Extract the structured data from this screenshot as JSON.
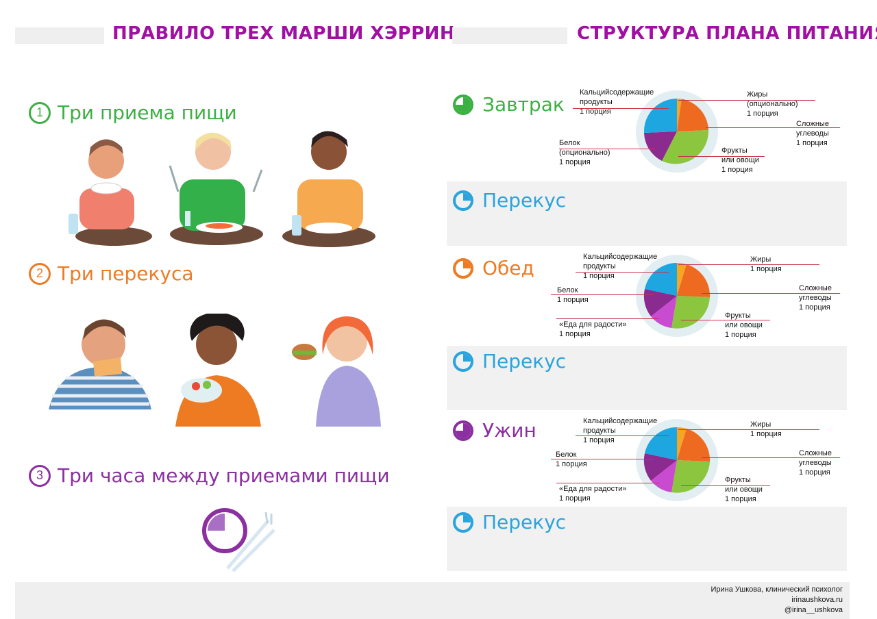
{
  "left": {
    "title": "ПРАВИЛО ТРЕХ МАРШИ ХЭРРИН",
    "rules": [
      {
        "number": "1",
        "text": "Три приема пищи",
        "color": "#3cb043"
      },
      {
        "number": "2",
        "text": "Три перекуса",
        "color": "#ee7b22"
      },
      {
        "number": "3",
        "text": "Три часа между приемами пищи",
        "color": "#8b2fa1"
      }
    ]
  },
  "right": {
    "title": "СТРУКТУРА ПЛАНА ПИТАНИЯ",
    "meals": [
      {
        "name": "Завтрак",
        "color": "#3cb043"
      },
      {
        "name": "Перекус",
        "color": "#2ba3dc"
      },
      {
        "name": "Обед",
        "color": "#ee7b22"
      },
      {
        "name": "Перекус",
        "color": "#2ba3dc"
      },
      {
        "name": "Ужин",
        "color": "#8b2fa1"
      },
      {
        "name": "Перекус",
        "color": "#2ba3dc"
      }
    ],
    "breakfast": {
      "calcium": "Кальцийсодержащие\nпродукты\n1 порция",
      "fats": "Жиры\n(опционально)\n1 порция",
      "carbs": "Сложные\nуглеводы\n1 порция",
      "fruits": "Фрукты\nили овощи\n1 порция",
      "protein": "Белок\n(опционально)\n1 порция"
    },
    "lunch": {
      "calcium": "Кальцийсодержащие\nпродукты\n1 порция",
      "fats": "Жиры\n1 порция",
      "carbs": "Сложные\nуглеводы\n1 порция",
      "fruits": "Фрукты\nили овощи\n1 порция",
      "protein": "Белок\n1 порция",
      "fun": "«Еда для радости»\n1 порция"
    },
    "dinner": {
      "calcium": "Кальцийсодержащие\nпродукты\n1 порция",
      "fats": "Жиры\n1 порция",
      "carbs": "Сложные\nуглеводы\n1 порция",
      "fruits": "Фрукты\nили овощи\n1 порция",
      "protein": "Белок\n1 порция",
      "fun": "«Еда для радости»\n1 порция"
    }
  },
  "footer": {
    "author": "Ирина Ушкова, клинический психолог",
    "site": "irinaushkova.ru",
    "handle": "@irina__ushkova"
  },
  "colors": {
    "title": "#a10fa3",
    "pie_calcium": "#1ea6e0",
    "pie_fats": "#f6a623",
    "pie_carbs": "#ee6a21",
    "pie_fruits": "#8cc63f",
    "pie_protein": "#8b2a8f",
    "pie_fun": "#c84bd0"
  }
}
